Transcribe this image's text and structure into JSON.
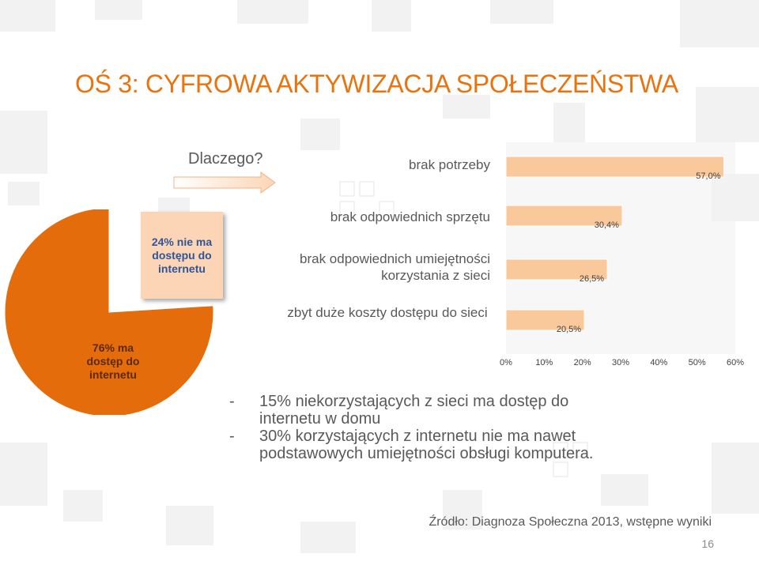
{
  "title": "OŚ 3: CYFROWA AKTYWIZACJA SPOŁECZEŃSTWA",
  "question": "Dlaczego?",
  "colors": {
    "accent": "#e8730f",
    "bar_fill": "#f9c89b",
    "pie_main": "#e46c0a",
    "pie_minor": "#fbd5b5",
    "text_gray": "#595959"
  },
  "chart_data": [
    {
      "type": "pie",
      "slices": [
        {
          "label": "76% ma dostęp do internetu",
          "value": 76
        },
        {
          "label": "24% nie ma dostępu do internetu",
          "value": 24
        }
      ]
    },
    {
      "type": "bar",
      "orientation": "horizontal",
      "categories": [
        "brak potrzeby",
        "brak odpowiednich sprzętu",
        "brak odpowiednich umiejętności korzystania z sieci",
        "zbyt duże koszty dostępu do sieci"
      ],
      "values": [
        57.0,
        30.4,
        26.5,
        20.5
      ],
      "data_labels": [
        "57,0%",
        "30,4%",
        "26,5%",
        "20,5%"
      ],
      "xlim": [
        0,
        60
      ],
      "x_ticks": [
        "0%",
        "10%",
        "20%",
        "30%",
        "40%",
        "50%",
        "60%"
      ]
    }
  ],
  "bullets": [
    "15% niekorzystających z sieci ma dostęp do internetu w domu",
    "30% korzystających z internetu nie ma nawet podstawowych umiejętności obsługi komputera."
  ],
  "bullet_marker": "-",
  "source": "Źródło: Diagnoza Społeczna 2013, wstępne wyniki",
  "page_number": "16"
}
